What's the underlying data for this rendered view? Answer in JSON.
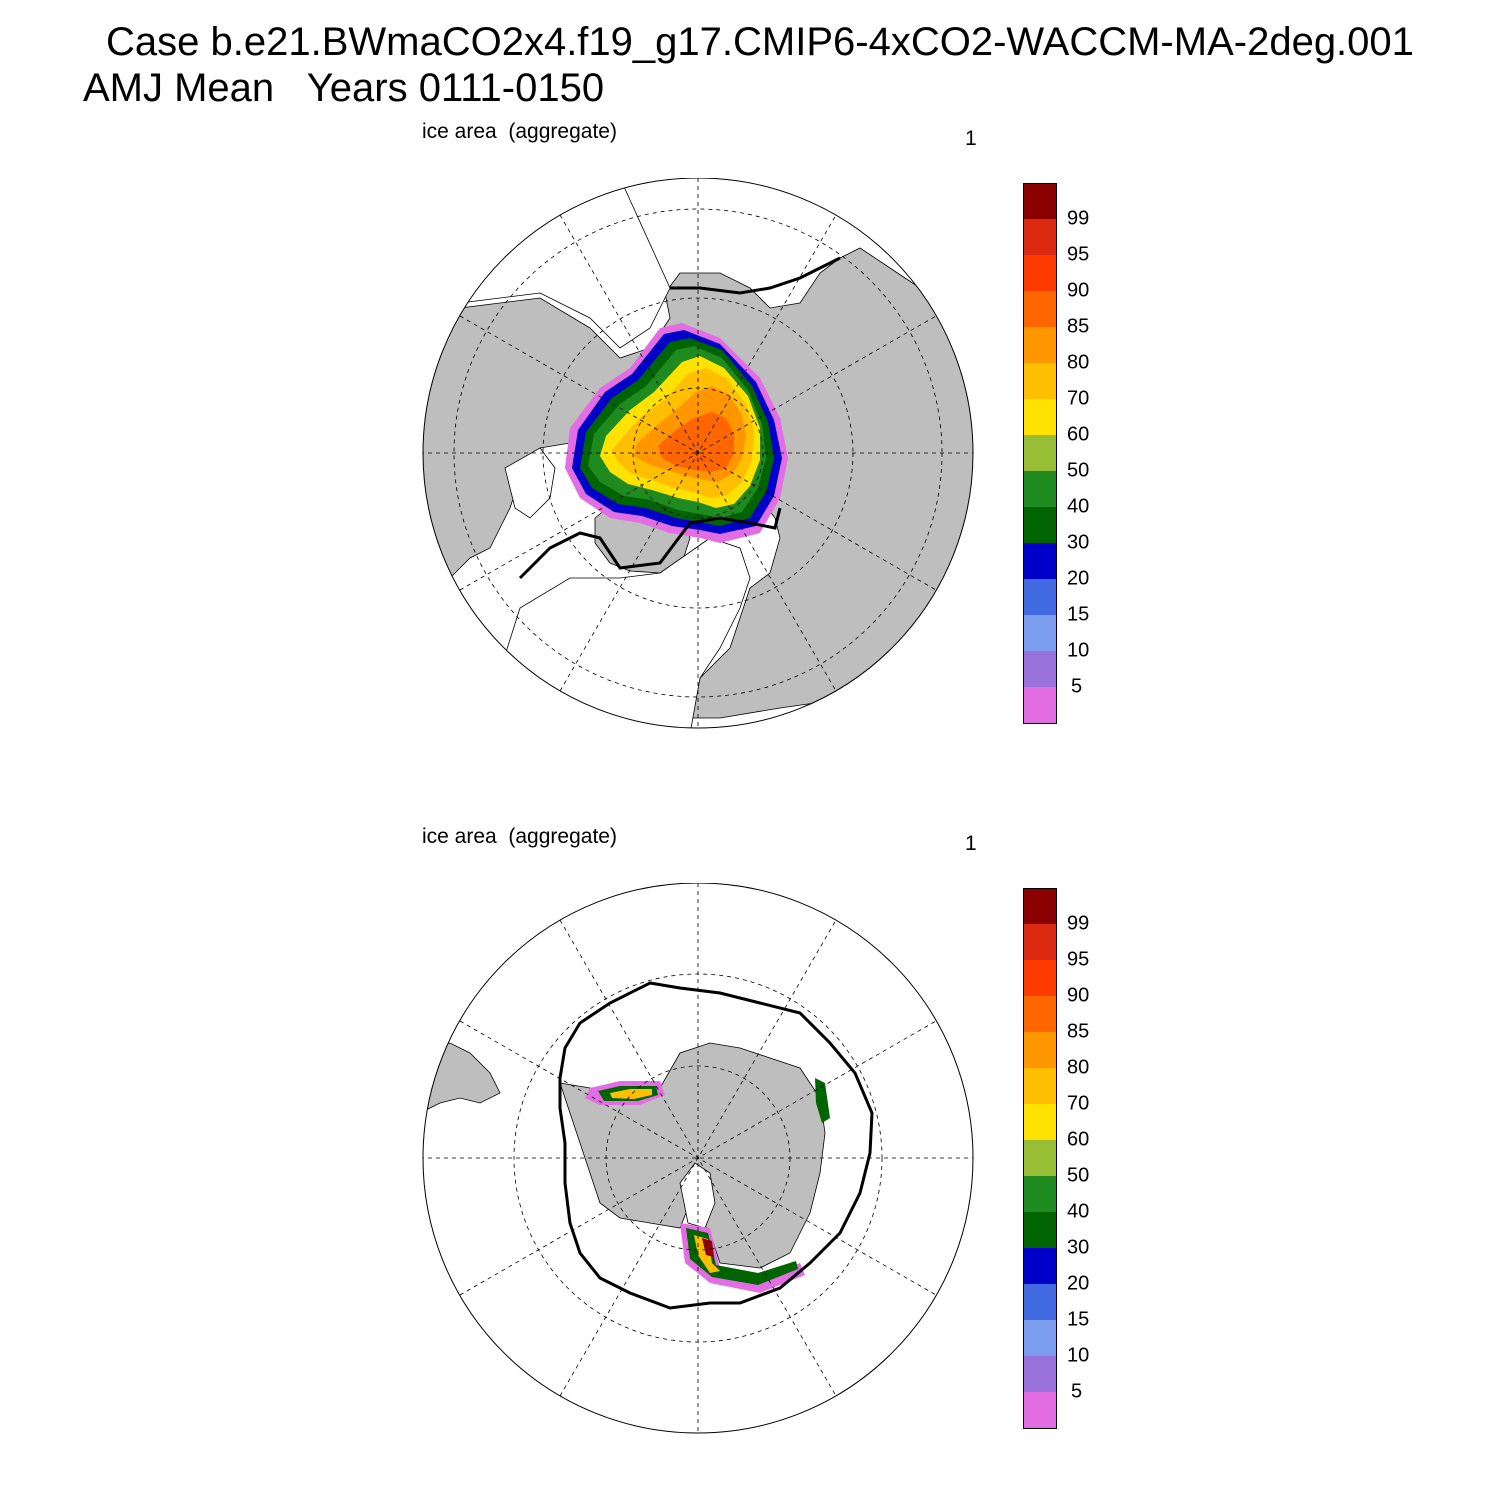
{
  "title_line1": "Case b.e21.BWmaCO2x4.f19_g17.CMIP6-4xCO2-WACCM-MA-2deg.001",
  "title_line2": "AMJ Mean   Years 0111-0150",
  "colors": {
    "land": "#bebebe",
    "ocean": "#ffffff",
    "grid": "#000000"
  },
  "colorbar": {
    "colors": [
      "#8b0000",
      "#dc2a12",
      "#ff3a00",
      "#ff6600",
      "#ff9600",
      "#ffbf00",
      "#ffe200",
      "#98be35",
      "#1f8a20",
      "#006400",
      "#0000c8",
      "#4169e1",
      "#7b9ef1",
      "#9a71db",
      "#e36ee3"
    ],
    "labels": [
      "99",
      "95",
      "90",
      "85",
      "80",
      "70",
      "60",
      "50",
      "40",
      "30",
      "20",
      "15",
      "10",
      "5"
    ]
  },
  "panels": [
    {
      "id": "north",
      "label_left": "ice area  (aggregate)",
      "label_right": "1",
      "hemisphere": "arctic",
      "contour_line": "model ice extent (15%)"
    },
    {
      "id": "south",
      "label_left": "ice area  (aggregate)",
      "label_right": "1",
      "hemisphere": "antarctic",
      "contour_line": "model ice extent (15%)"
    }
  ]
}
